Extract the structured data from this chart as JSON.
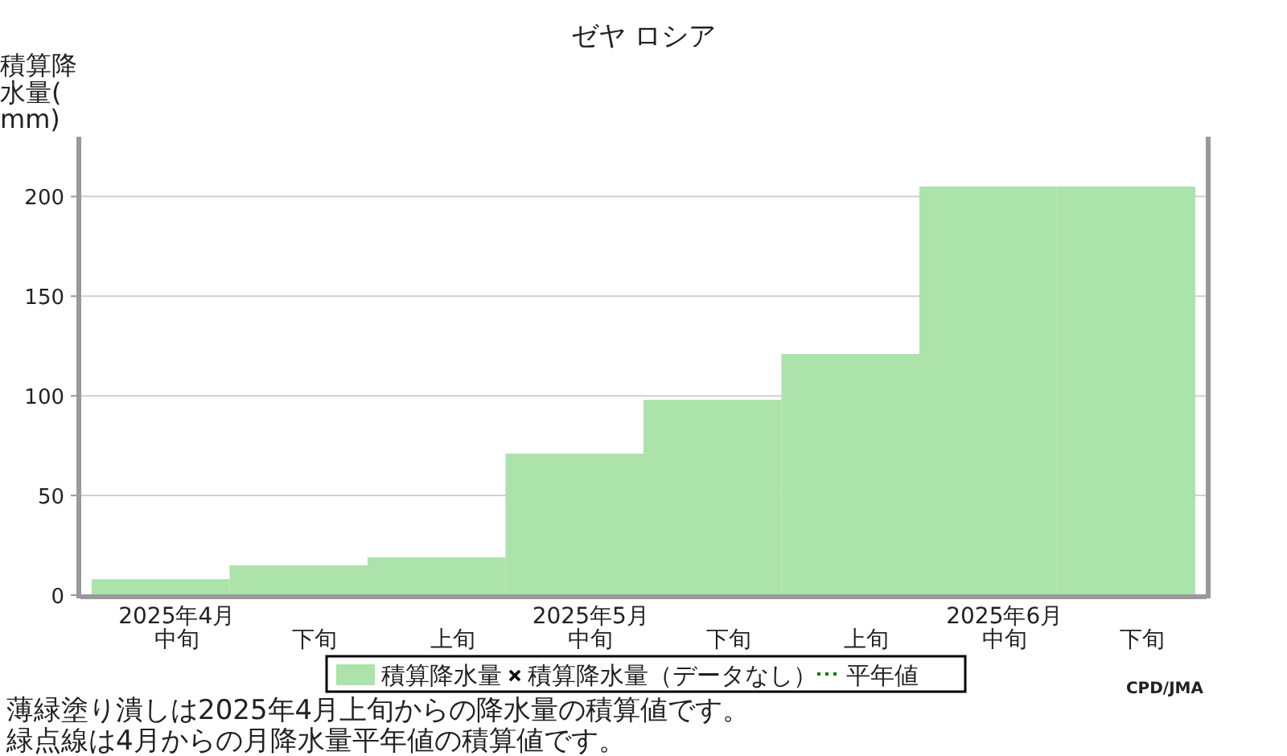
{
  "chart_data": {
    "type": "bar",
    "title": "ゼヤ ロシア",
    "ylabel": "積算降水量(mm)",
    "categories": [
      "2025年4月中旬",
      "下旬",
      "上旬",
      "2025年5月中旬",
      "下旬",
      "上旬",
      "2025年6月中旬",
      "下旬"
    ],
    "series": [
      {
        "name": "積算降水量",
        "color": "#abe3aa",
        "values": [
          8,
          15,
          19,
          71,
          98,
          121,
          205,
          205
        ]
      },
      {
        "name": "積算降水量（データなし）",
        "type": "scatter",
        "marker": "cross",
        "color": "#000000",
        "values": [
          null,
          null,
          null,
          null,
          null,
          null,
          null,
          null
        ]
      },
      {
        "name": "平年値",
        "type": "line",
        "line_style": "dotted",
        "color": "#008000",
        "values": [
          null,
          null,
          null,
          null,
          null,
          null,
          null,
          null
        ]
      }
    ],
    "ylim": [
      0,
      230
    ],
    "yticks": [
      0,
      50,
      100,
      150,
      200
    ],
    "grid": "y",
    "legend": "bottom",
    "annotations": [
      "CPD/JMA",
      "薄緑塗り潰しは2025年4月上旬からの降水量の積算値です。",
      "緑点線は4月からの月降水量平年値の積算値です。"
    ]
  }
}
